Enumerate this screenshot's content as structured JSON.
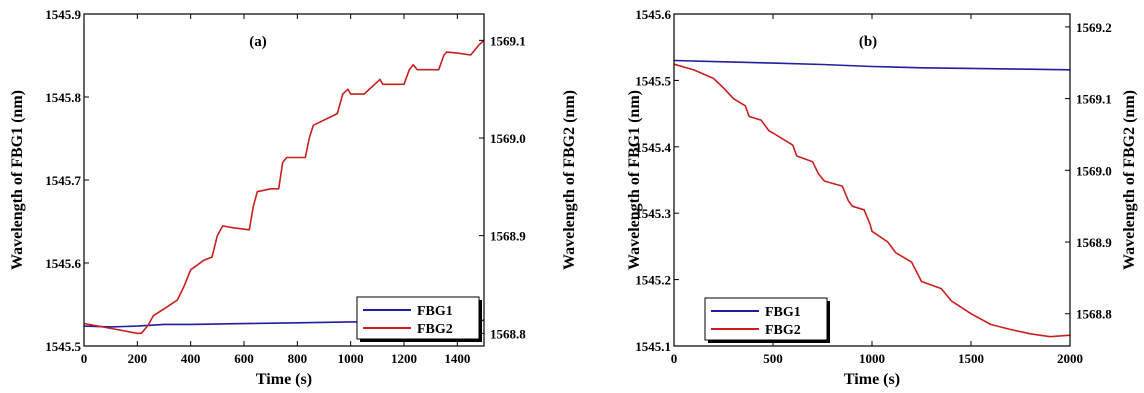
{
  "chart_data": [
    {
      "panel_label": "(a)",
      "type": "line",
      "xlabel": "Time (s)",
      "ylabel_left": "Wavelength of FBG1 (nm)",
      "ylabel_right": "Wavelength of FBG2 (nm)",
      "xlim": [
        0,
        1500
      ],
      "ylim_left": [
        1545.5,
        1545.9
      ],
      "ylim_right": [
        1568.787,
        1569.127
      ],
      "x_ticks": [
        0,
        200,
        400,
        600,
        800,
        1000,
        1200,
        1400
      ],
      "x_tick_labels": [
        "0",
        "200",
        "400",
        "600",
        "800",
        "1000",
        "1200",
        "1400"
      ],
      "y_left_ticks": [
        1545.5,
        1545.6,
        1545.7,
        1545.8,
        1545.9
      ],
      "y_left_tick_labels": [
        "1545.5",
        "1545.6",
        "1545.7",
        "1545.8",
        "1545.9"
      ],
      "y_right_ticks": [
        1568.8,
        1568.9,
        1569.0,
        1569.1
      ],
      "y_right_tick_labels": [
        "1568.8",
        "1568.9",
        "1569.0",
        "1569.1"
      ],
      "legend_position": "middle-right",
      "series": [
        {
          "name": "FBG1",
          "color": "#1f1fa0",
          "axis": "left",
          "x": [
            0,
            100,
            200,
            300,
            400,
            600,
            800,
            1000,
            1200,
            1400,
            1500
          ],
          "y": [
            1545.524,
            1545.523,
            1545.524,
            1545.526,
            1545.526,
            1545.527,
            1545.528,
            1545.529,
            1545.529,
            1545.531,
            1545.531
          ]
        },
        {
          "name": "FBG2",
          "color": "#c8201e",
          "axis": "right",
          "x": [
            0,
            100,
            200,
            215,
            240,
            260,
            300,
            350,
            375,
            400,
            450,
            480,
            500,
            520,
            560,
            620,
            635,
            650,
            700,
            730,
            745,
            760,
            830,
            845,
            860,
            950,
            970,
            990,
            1000,
            1050,
            1090,
            1110,
            1120,
            1200,
            1220,
            1235,
            1250,
            1330,
            1350,
            1360,
            1400,
            1450,
            1480,
            1500
          ],
          "y": [
            1568.81,
            1568.805,
            1568.8,
            1568.8,
            1568.808,
            1568.818,
            1568.825,
            1568.834,
            1568.848,
            1568.865,
            1568.875,
            1568.878,
            1568.9,
            1568.91,
            1568.908,
            1568.906,
            1568.93,
            1568.945,
            1568.948,
            1568.948,
            1568.975,
            1568.98,
            1568.98,
            1569.0,
            1569.013,
            1569.025,
            1569.045,
            1569.05,
            1569.045,
            1569.045,
            1569.055,
            1569.06,
            1569.055,
            1569.055,
            1569.07,
            1569.075,
            1569.07,
            1569.07,
            1569.085,
            1569.088,
            1569.087,
            1569.085,
            1569.095,
            1569.1
          ]
        }
      ]
    },
    {
      "panel_label": "(b)",
      "type": "line",
      "xlabel": "Time (s)",
      "ylabel_left": "Wavelength of FBG1 (nm)",
      "ylabel_right": "Wavelength of FBG2 (nm)",
      "xlim": [
        0,
        2000
      ],
      "ylim_left": [
        1545.1,
        1545.6
      ],
      "ylim_right": [
        1568.755,
        1569.218
      ],
      "x_ticks": [
        0,
        500,
        1000,
        1500,
        2000
      ],
      "x_tick_labels": [
        "0",
        "500",
        "1000",
        "1500",
        "2000"
      ],
      "y_left_ticks": [
        1545.1,
        1545.2,
        1545.3,
        1545.4,
        1545.5,
        1545.6
      ],
      "y_left_tick_labels": [
        "1545.1",
        "1545.2",
        "1545.3",
        "1545.4",
        "1545.5",
        "1545.6"
      ],
      "y_right_ticks": [
        1568.8,
        1568.9,
        1569.0,
        1569.1,
        1569.2
      ],
      "y_right_tick_labels": [
        "1568.8",
        "1568.9",
        "1569.0",
        "1569.1",
        "1569.2"
      ],
      "legend_position": "middle-left",
      "series": [
        {
          "name": "FBG1",
          "color": "#1f1fa0",
          "axis": "left",
          "x": [
            0,
            250,
            500,
            750,
            1000,
            1250,
            1500,
            1750,
            2000
          ],
          "y": [
            1545.53,
            1545.528,
            1545.526,
            1545.524,
            1545.521,
            1545.519,
            1545.518,
            1545.517,
            1545.516
          ]
        },
        {
          "name": "FBG2",
          "color": "#c8201e",
          "axis": "right",
          "x": [
            0,
            100,
            200,
            250,
            300,
            360,
            380,
            440,
            480,
            500,
            600,
            620,
            700,
            730,
            760,
            850,
            880,
            900,
            960,
            990,
            1000,
            1080,
            1120,
            1200,
            1250,
            1350,
            1400,
            1500,
            1600,
            1700,
            1800,
            1900,
            2000
          ],
          "y": [
            1569.148,
            1569.14,
            1569.128,
            1569.115,
            1569.1,
            1569.09,
            1569.075,
            1569.07,
            1569.055,
            1569.052,
            1569.035,
            1569.02,
            1569.012,
            1568.995,
            1568.985,
            1568.978,
            1568.958,
            1568.95,
            1568.945,
            1568.925,
            1568.915,
            1568.9,
            1568.885,
            1568.872,
            1568.845,
            1568.835,
            1568.818,
            1568.8,
            1568.785,
            1568.778,
            1568.772,
            1568.768,
            1568.77
          ]
        }
      ]
    }
  ]
}
